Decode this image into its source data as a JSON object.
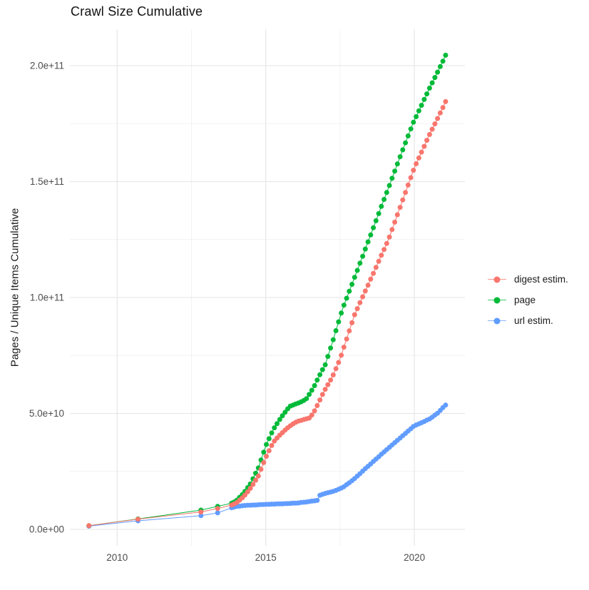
{
  "title": "Crawl Size Cumulative",
  "y_axis": {
    "label": "Pages / Unique Items Cumulative",
    "ticks": [
      {
        "value_billions": 0,
        "label": "0.0e+00"
      },
      {
        "value_billions": 50,
        "label": "5.0e+10"
      },
      {
        "value_billions": 100,
        "label": "1.0e+11"
      },
      {
        "value_billions": 150,
        "label": "1.5e+11"
      },
      {
        "value_billions": 200,
        "label": "2.0e+11"
      }
    ]
  },
  "x_axis": {
    "ticks": [
      {
        "value": 2010,
        "label": "2010"
      },
      {
        "value": 2015,
        "label": "2015"
      },
      {
        "value": 2020,
        "label": "2020"
      }
    ]
  },
  "legend": {
    "items": [
      {
        "label": "digest estim.",
        "color": "#F8766D"
      },
      {
        "label": "page",
        "color": "#00BA38"
      },
      {
        "label": "url estim.",
        "color": "#619CFF"
      }
    ]
  },
  "colors": {
    "grid_major": "#e5e5e5",
    "grid_minor": "#f2f2f2",
    "tick_text": "#4d4d4d",
    "background": "#ffffff"
  },
  "chart_data": {
    "type": "scatter",
    "title": "Crawl Size Cumulative",
    "xlabel": "",
    "ylabel": "Pages / Unique Items Cumulative",
    "unit": "values in billions (1e9) of pages / unique items",
    "x_domain": [
      2008.4,
      2021.7
    ],
    "y_domain_billions": [
      -7,
      215.6
    ],
    "x_major_gridlines": [
      2010,
      2015,
      2020
    ],
    "x_minor_gridlines": [
      2012.5,
      2017.5
    ],
    "y_major_gridlines_billions": [
      0,
      50,
      100,
      150,
      200
    ],
    "y_minor_gridlines_billions": [
      25,
      75,
      125,
      175
    ],
    "grid": true,
    "legend_position": "right",
    "x": [
      2009.05,
      2010.7,
      2012.82,
      2013.38,
      2013.85,
      2013.94,
      2014.03,
      2014.12,
      2014.21,
      2014.3,
      2014.39,
      2014.48,
      2014.57,
      2014.66,
      2014.75,
      2014.84,
      2014.93,
      2015.02,
      2015.11,
      2015.2,
      2015.29,
      2015.38,
      2015.47,
      2015.56,
      2015.65,
      2015.74,
      2015.83,
      2015.92,
      2016.01,
      2016.1,
      2016.19,
      2016.28,
      2016.37,
      2016.46,
      2016.55,
      2016.64,
      2016.73,
      2016.82,
      2016.91,
      2017.0,
      2017.09,
      2017.18,
      2017.27,
      2017.36,
      2017.45,
      2017.54,
      2017.63,
      2017.72,
      2017.81,
      2017.9,
      2017.99,
      2018.08,
      2018.17,
      2018.26,
      2018.35,
      2018.44,
      2018.53,
      2018.62,
      2018.71,
      2018.8,
      2018.89,
      2018.98,
      2019.07,
      2019.16,
      2019.25,
      2019.34,
      2019.43,
      2019.52,
      2019.61,
      2019.7,
      2019.79,
      2019.88,
      2019.97,
      2020.06,
      2020.15,
      2020.24,
      2020.33,
      2020.42,
      2020.51,
      2020.6,
      2020.69,
      2020.78,
      2020.87,
      2020.96,
      2021.05
    ],
    "series": [
      {
        "name": "digest estim.",
        "color": "#F8766D",
        "values_billions": [
          1.6,
          4.4,
          7.5,
          9.0,
          10.5,
          11.0,
          11.6,
          12.6,
          13.6,
          14.8,
          16.2,
          17.7,
          19.4,
          21.2,
          23.0,
          25.9,
          28.8,
          31.5,
          33.9,
          36.2,
          38.1,
          39.4,
          40.6,
          41.7,
          42.8,
          43.8,
          44.7,
          45.5,
          46.2,
          46.7,
          47.0,
          47.4,
          47.7,
          48.0,
          49.3,
          51.1,
          53.4,
          55.8,
          58.2,
          60.4,
          62.4,
          64.4,
          66.6,
          69.3,
          72.0,
          75.1,
          78.6,
          82.1,
          85.6,
          89.1,
          92.6,
          95.2,
          97.8,
          100.3,
          102.8,
          105.3,
          107.9,
          110.4,
          113.0,
          115.6,
          118.2,
          120.7,
          123.3,
          126.1,
          129.3,
          132.5,
          135.7,
          138.9,
          142.1,
          145.3,
          148.5,
          151.7,
          154.9,
          157.7,
          160.2,
          162.7,
          165.2,
          167.8,
          170.3,
          172.6,
          174.9,
          177.2,
          179.6,
          181.9,
          184.5
        ]
      },
      {
        "name": "page",
        "color": "#00BA38",
        "values_billions": [
          1.6,
          4.5,
          8.3,
          9.9,
          11.3,
          11.8,
          12.6,
          13.8,
          15.0,
          16.4,
          18.0,
          19.6,
          21.8,
          24.2,
          26.5,
          29.9,
          33.3,
          36.6,
          39.1,
          41.6,
          43.8,
          45.6,
          47.4,
          49.0,
          50.5,
          52.0,
          53.2,
          53.6,
          54.1,
          54.5,
          55.0,
          55.6,
          56.4,
          58.2,
          60.0,
          62.0,
          64.4,
          66.7,
          68.9,
          71.0,
          74.6,
          78.2,
          81.8,
          85.7,
          89.5,
          93.3,
          96.7,
          99.7,
          102.7,
          105.7,
          108.7,
          111.7,
          114.8,
          117.8,
          120.9,
          124.0,
          127.0,
          130.1,
          133.1,
          136.2,
          139.3,
          142.3,
          145.3,
          148.3,
          151.4,
          154.5,
          157.6,
          160.7,
          163.7,
          166.7,
          169.7,
          172.7,
          175.6,
          178.0,
          180.5,
          182.9,
          185.4,
          187.8,
          190.3,
          192.6,
          194.9,
          197.2,
          199.6,
          201.9,
          204.5
        ]
      },
      {
        "name": "url estim.",
        "color": "#619CFF",
        "values_billions": [
          1.4,
          3.7,
          5.9,
          7.1,
          9.3,
          9.6,
          9.9,
          10.0,
          10.2,
          10.3,
          10.4,
          10.4,
          10.5,
          10.5,
          10.6,
          10.7,
          10.7,
          10.8,
          10.8,
          10.9,
          10.9,
          11.0,
          11.0,
          11.0,
          11.1,
          11.1,
          11.2,
          11.3,
          11.3,
          11.4,
          11.6,
          11.7,
          11.8,
          12.0,
          12.2,
          12.3,
          12.5,
          14.7,
          15.1,
          15.5,
          15.8,
          16.1,
          16.4,
          16.8,
          17.3,
          17.8,
          18.4,
          19.3,
          20.1,
          21.0,
          21.9,
          23.0,
          24.0,
          25.1,
          26.2,
          27.2,
          28.2,
          29.3,
          30.3,
          31.3,
          32.4,
          33.4,
          34.4,
          35.4,
          36.4,
          37.4,
          38.4,
          39.4,
          40.4,
          41.4,
          42.4,
          43.4,
          44.4,
          45.0,
          45.5,
          46.0,
          46.5,
          47.1,
          47.6,
          48.4,
          49.3,
          50.1,
          51.3,
          52.5,
          53.6
        ]
      }
    ]
  }
}
